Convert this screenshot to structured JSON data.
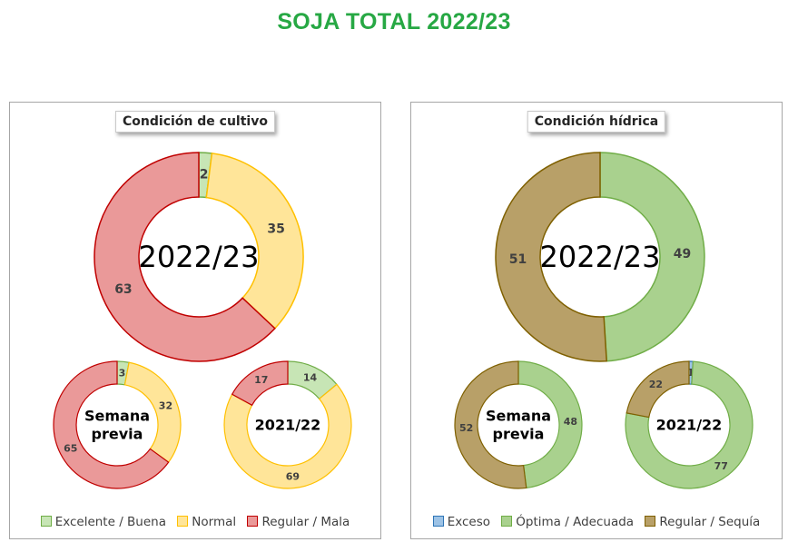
{
  "title": "SOJA TOTAL 2022/23",
  "chart_data": [
    {
      "type": "pie",
      "panel_title": "Condición  de cultivo",
      "legend": [
        "Excelente / Buena",
        "Normal",
        "Regular / Mala"
      ],
      "colors": [
        {
          "fill": "#c7e5b5",
          "stroke": "#70ad47"
        },
        {
          "fill": "#ffe599",
          "stroke": "#ffc000"
        },
        {
          "fill": "#ea9999",
          "stroke": "#c00000"
        }
      ],
      "donuts": [
        {
          "label": "2022/23",
          "values": [
            2,
            35,
            63
          ],
          "value_labels": [
            "2",
            "35",
            "63"
          ]
        },
        {
          "label": "Semana previa",
          "values": [
            3,
            32,
            65
          ],
          "value_labels": [
            "3",
            "32",
            "65"
          ]
        },
        {
          "label": "2021/22",
          "values": [
            14,
            69,
            17
          ],
          "value_labels": [
            "14",
            "69",
            "17"
          ]
        }
      ]
    },
    {
      "type": "pie",
      "panel_title": "Condición  hídrica",
      "legend": [
        "Exceso",
        "Óptima / Adecuada",
        "Regular / Sequía"
      ],
      "colors": [
        {
          "fill": "#9dc3e6",
          "stroke": "#2e75b6"
        },
        {
          "fill": "#a9d18e",
          "stroke": "#70ad47"
        },
        {
          "fill": "#b8a068",
          "stroke": "#7f6000"
        }
      ],
      "donuts": [
        {
          "label": "2022/23",
          "values": [
            0,
            49,
            51
          ],
          "value_labels": [
            "-",
            "49",
            "51"
          ]
        },
        {
          "label": "Semana previa",
          "values": [
            0,
            48,
            52
          ],
          "value_labels": [
            "-",
            "48",
            "52"
          ]
        },
        {
          "label": "2021/22",
          "values": [
            1,
            77,
            22
          ],
          "value_labels": [
            "1",
            "77",
            "22"
          ]
        }
      ]
    }
  ]
}
